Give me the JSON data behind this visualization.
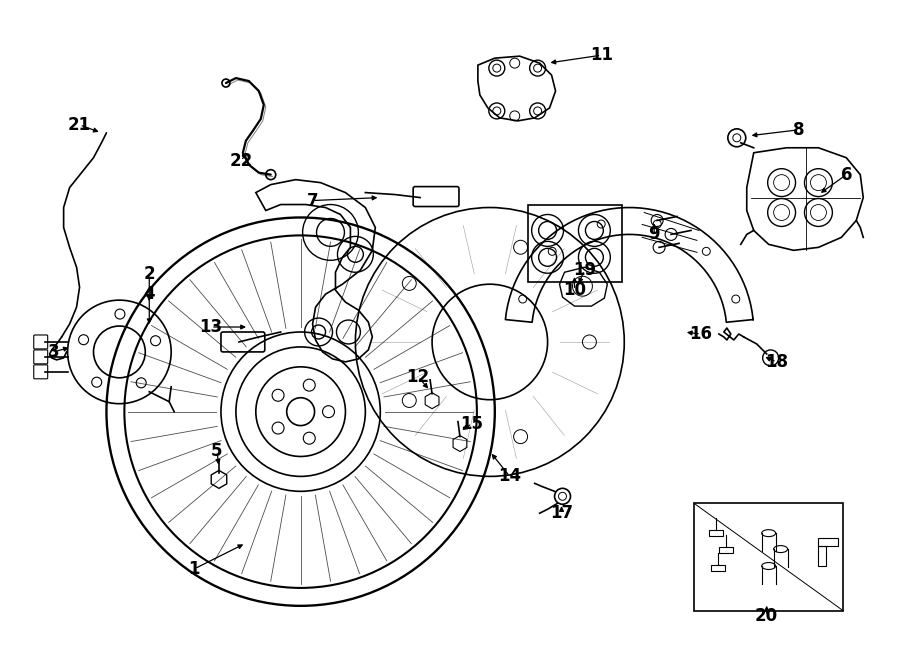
{
  "bg_color": "#ffffff",
  "line_color": "#000000",
  "figsize": [
    9.0,
    6.62
  ],
  "dpi": 100
}
